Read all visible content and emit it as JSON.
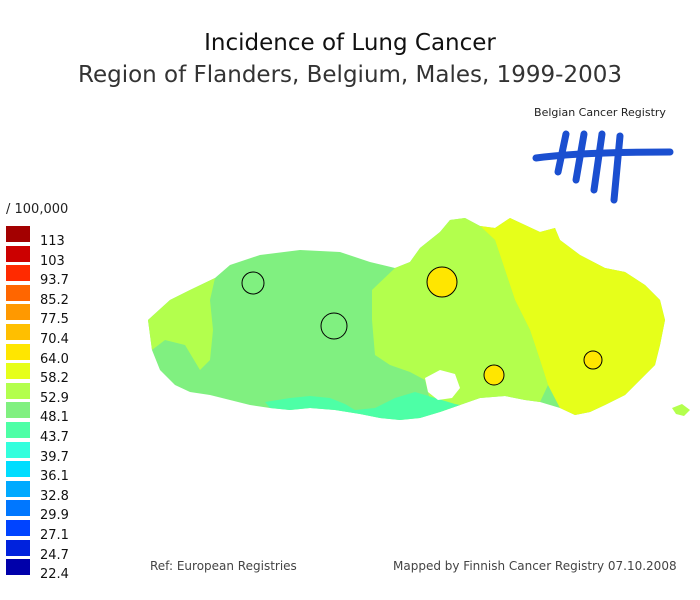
{
  "title": "Incidence of Lung Cancer",
  "subtitle": "Region of Flanders, Belgium, Males, 1999-2003",
  "logo": {
    "text": "Belgian Cancer Registry",
    "color": "#1b4fd0"
  },
  "legend": {
    "unit": "/ 100,000",
    "items": [
      {
        "label": "113",
        "color": "#a30000"
      },
      {
        "label": "103",
        "color": "#cc0000"
      },
      {
        "label": "93.7",
        "color": "#ff2a00"
      },
      {
        "label": "85.2",
        "color": "#ff6600"
      },
      {
        "label": "77.5",
        "color": "#ff9900"
      },
      {
        "label": "70.4",
        "color": "#ffbf00"
      },
      {
        "label": "64.0",
        "color": "#ffe600"
      },
      {
        "label": "58.2",
        "color": "#e6ff1a"
      },
      {
        "label": "52.9",
        "color": "#b3ff4d"
      },
      {
        "label": "48.1",
        "color": "#80f080"
      },
      {
        "label": "43.7",
        "color": "#4dffa6"
      },
      {
        "label": "39.7",
        "color": "#33ffdd"
      },
      {
        "label": "36.1",
        "color": "#00ddff"
      },
      {
        "label": "32.8",
        "color": "#00aaff"
      },
      {
        "label": "29.9",
        "color": "#0077ff"
      },
      {
        "label": "27.1",
        "color": "#0044ff"
      },
      {
        "label": "24.7",
        "color": "#0022dd"
      },
      {
        "label": "22.4",
        "color": "#0000aa"
      }
    ]
  },
  "map": {
    "regions": [
      {
        "name": "west",
        "color": "#80f080"
      },
      {
        "name": "center",
        "color": "#b3ff4d"
      },
      {
        "name": "east",
        "color": "#e6ff1a"
      },
      {
        "name": "south-band",
        "color": "#4dffa6"
      }
    ],
    "markers": [
      {
        "name": "marker-1",
        "color": "none"
      },
      {
        "name": "marker-2",
        "color": "none"
      },
      {
        "name": "marker-3",
        "color": "#ffe600"
      },
      {
        "name": "marker-4",
        "color": "#ffe600"
      },
      {
        "name": "marker-5",
        "color": "#ffe600"
      }
    ]
  },
  "footer": {
    "ref": "Ref: European Registries",
    "mapped": "Mapped by Finnish Cancer Registry 07.10.2008"
  }
}
